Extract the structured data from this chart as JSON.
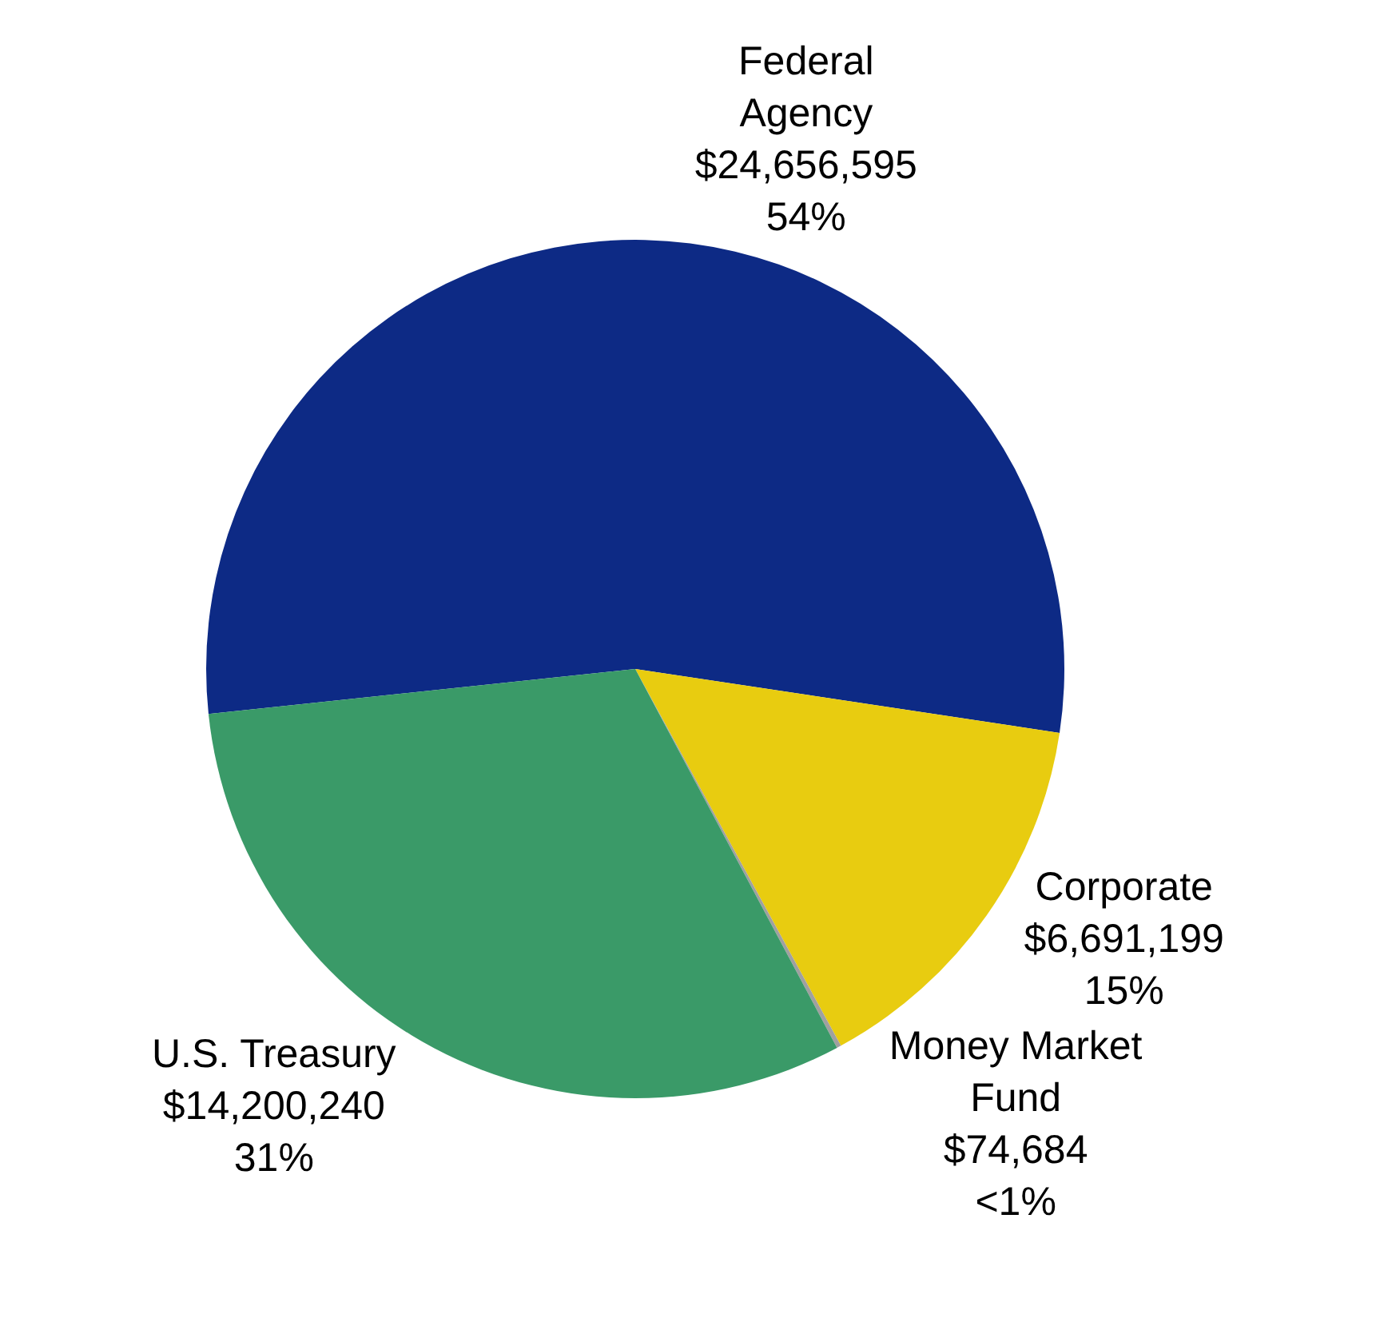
{
  "chart_data": {
    "type": "pie",
    "categories": [
      "Federal Agency",
      "Corporate",
      "Money Market Fund",
      "U.S. Treasury"
    ],
    "values": [
      24656595,
      6691199,
      74684,
      14200240
    ],
    "value_labels": [
      "$24,656,595\n54%",
      "$6,691,199\n15%",
      "$74,684\n<1%",
      "$14,200,240\n31%"
    ],
    "colors": [
      "#0d2a85",
      "#e8cc10",
      "#a0a0a0",
      "#3a9a68"
    ],
    "legend": false
  }
}
